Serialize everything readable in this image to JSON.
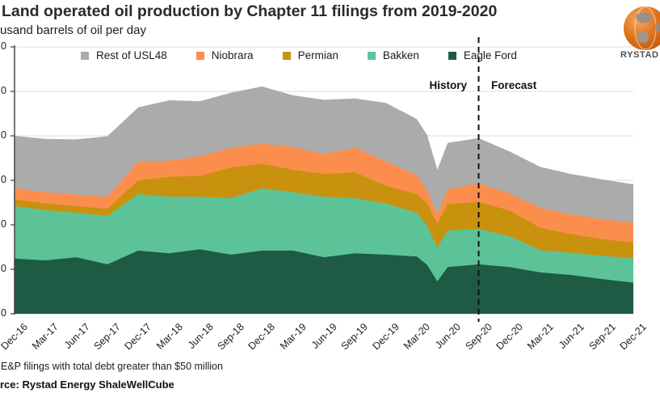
{
  "header": {
    "title": "Land operated oil production by Chapter 11 filings from 2019-2020",
    "subtitle": "usand barrels of oil per day"
  },
  "logo": {
    "brand": "RYSTAD E",
    "globe_color": "#e0741c"
  },
  "annotations": {
    "history": "History",
    "forecast": "Forecast"
  },
  "footnotes": {
    "note": "E&P filings with total debt greater than $50 million",
    "source": "rce: Rystad Energy ShaleWellCube"
  },
  "chart_data": {
    "type": "area",
    "stacked": true,
    "title": "Land operated oil production by Chapter 11 filings from 2019-2020",
    "unit": "thousand barrels of oil per day",
    "grid": true,
    "legend_position": "top",
    "y_axis": {
      "min": 0,
      "max": 600,
      "step": 100,
      "tick_label_visible": "0"
    },
    "x_tick_labels": [
      "Dec-16",
      "Mar-17",
      "Jun-17",
      "Sep-17",
      "Dec-17",
      "Mar-18",
      "Jun-18",
      "Sep-18",
      "Dec-18",
      "Mar-19",
      "Jun-19",
      "Sep-19",
      "Dec-19",
      "Mar-20",
      "Jun-20",
      "Sep-20",
      "Dec-20",
      "Mar-21",
      "Jun-21",
      "Sep-21",
      "Dec-21"
    ],
    "x_tick_months": [
      0,
      3,
      6,
      9,
      12,
      15,
      18,
      21,
      24,
      27,
      30,
      33,
      36,
      39,
      42,
      45,
      48,
      51,
      54,
      57,
      60
    ],
    "sample_months": [
      0,
      3,
      6,
      9,
      12,
      15,
      18,
      21,
      24,
      27,
      30,
      33,
      36,
      39,
      40,
      41,
      42,
      45,
      48,
      51,
      54,
      57,
      60
    ],
    "series": [
      {
        "name": "Eagle Ford",
        "color": "#1f5b44",
        "values": [
          124,
          120,
          127,
          111,
          142,
          136,
          145,
          133,
          142,
          142,
          127,
          136,
          133,
          129,
          110,
          73,
          105,
          111,
          105,
          93,
          87,
          78,
          70
        ]
      },
      {
        "name": "Bakken",
        "color": "#5cc398",
        "values": [
          118,
          113,
          100,
          109,
          127,
          127,
          118,
          127,
          140,
          131,
          136,
          124,
          115,
          98,
          88,
          75,
          82,
          80,
          69,
          50,
          50,
          52,
          55
        ]
      },
      {
        "name": "Permian",
        "color": "#c9920e",
        "values": [
          15,
          15,
          15,
          16,
          31,
          45,
          47,
          69,
          55,
          51,
          51,
          58,
          40,
          42,
          50,
          55,
          60,
          60,
          58,
          50,
          42,
          38,
          35
        ]
      },
      {
        "name": "Niobrara",
        "color": "#fb8e4d",
        "values": [
          25,
          25,
          26,
          27,
          42,
          36,
          44,
          44,
          45,
          51,
          45,
          55,
          55,
          42,
          30,
          20,
          33,
          42,
          38,
          45,
          44,
          44,
          45
        ]
      },
      {
        "name": "Rest of USL48",
        "color": "#ababab",
        "values": [
          118,
          120,
          124,
          136,
          122,
          136,
          124,
          124,
          129,
          116,
          122,
          111,
          131,
          127,
          124,
          101,
          104,
          102,
          95,
          92,
          91,
          90,
          86
        ]
      }
    ],
    "legend_order": [
      "Rest of USL48",
      "Niobrara",
      "Permian",
      "Bakken",
      "Eagle Ford"
    ],
    "history_forecast_divider_month": 45
  }
}
